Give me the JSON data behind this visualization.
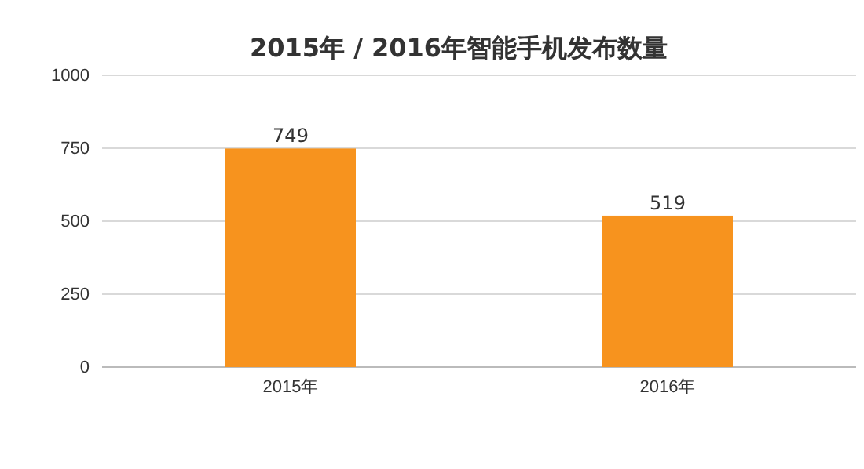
{
  "chart_data": {
    "type": "bar",
    "title": "2015年 / 2016年智能手机发布数量",
    "categories": [
      "2015年",
      "2016年"
    ],
    "values": [
      749,
      519
    ],
    "color": "#f7931e",
    "ylim": [
      0,
      1000
    ],
    "yticks": [
      0,
      250,
      500,
      750,
      1000
    ],
    "grid": "y",
    "data_labels": true
  }
}
